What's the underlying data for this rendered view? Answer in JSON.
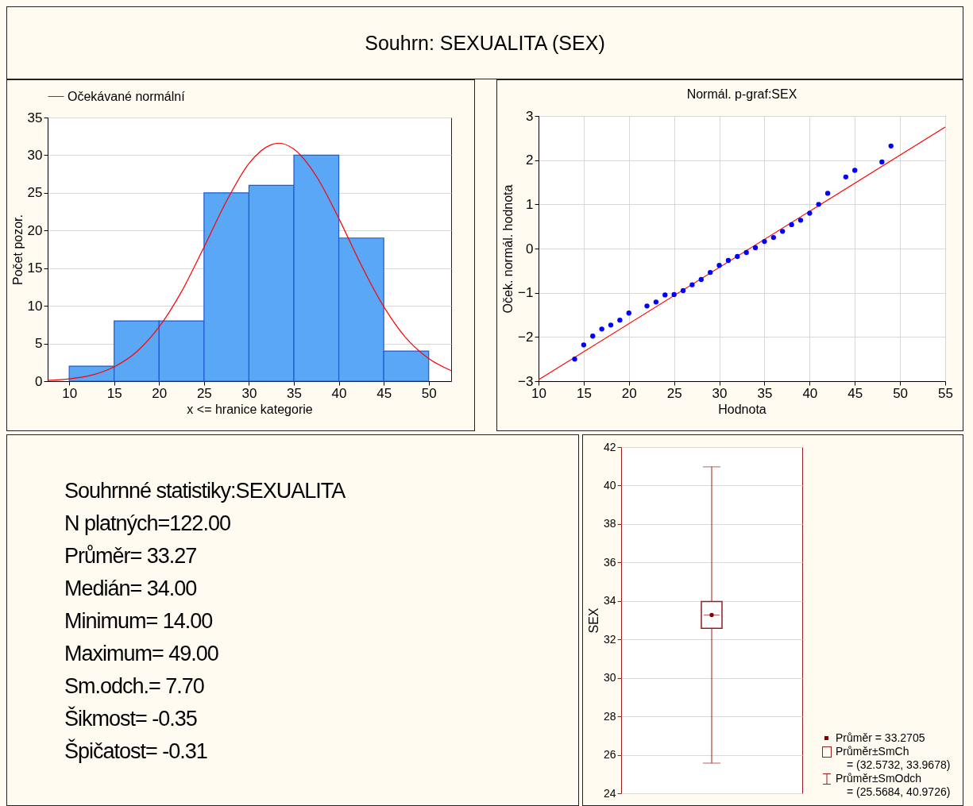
{
  "chart_data": [
    {
      "type": "histogram",
      "title": "Souhrn: SEXUALITA (SEX)",
      "xlabel": "x <= hranice kategorie",
      "ylabel": "Počet pozor.",
      "bins": [
        10,
        15,
        20,
        25,
        30,
        35,
        40,
        45,
        50
      ],
      "values": [
        2,
        8,
        8,
        25,
        26,
        30,
        19,
        4
      ],
      "color": "#5aa7f6",
      "xlim": [
        7.6,
        52.5
      ],
      "xticks": [
        10,
        15,
        20,
        25,
        30,
        35,
        40,
        45,
        50
      ],
      "ylim": [
        0,
        35
      ],
      "yticks": [
        0,
        5,
        10,
        15,
        20,
        25,
        30,
        35
      ],
      "grid": "y",
      "legend": "top",
      "series": [
        {
          "name": "Očekávané normální",
          "type": "line",
          "color": "#ff0000",
          "x": [
            7.6,
            10,
            12.5,
            15,
            17.5,
            20,
            22.5,
            25,
            27.5,
            30,
            32.5,
            33.3,
            35,
            37.5,
            40,
            42.5,
            45,
            47.5,
            50,
            52.5
          ],
          "values": [
            0.1,
            0.3,
            0.8,
            1.9,
            3.9,
            7.2,
            11.9,
            17.8,
            23.9,
            28.9,
            31.4,
            31.6,
            30.8,
            27.2,
            21.6,
            15.4,
            9.9,
            5.7,
            3.0,
            1.4
          ]
        }
      ]
    },
    {
      "type": "scatter",
      "title": "Normál. p-graf:SEX",
      "xlabel": "Hodnota",
      "ylabel": "Oček. normál. hodnota",
      "xlim": [
        10,
        55
      ],
      "xticks": [
        10,
        15,
        20,
        25,
        30,
        35,
        40,
        45,
        50,
        55
      ],
      "ylim": [
        -3,
        3
      ],
      "yticks": [
        -3,
        -2,
        -1,
        0,
        1,
        2,
        3
      ],
      "grid": true,
      "series": [
        {
          "type": "scatter",
          "marker": "circle",
          "color": "#0000ff",
          "x": [
            14,
            15,
            16,
            17,
            18,
            19,
            20,
            22,
            23,
            24,
            25,
            26,
            27,
            28,
            29,
            30,
            31,
            32,
            33,
            34,
            35,
            36,
            37,
            38,
            39,
            40,
            41,
            42,
            44,
            45,
            48,
            49
          ],
          "values": [
            -2.5,
            -2.18,
            -1.98,
            -1.82,
            -1.73,
            -1.62,
            -1.46,
            -1.3,
            -1.21,
            -1.05,
            -1.04,
            -0.95,
            -0.82,
            -0.7,
            -0.54,
            -0.38,
            -0.27,
            -0.18,
            -0.09,
            0.02,
            0.16,
            0.25,
            0.39,
            0.54,
            0.64,
            0.8,
            1.0,
            1.25,
            1.62,
            1.77,
            1.96,
            2.32
          ]
        },
        {
          "type": "line",
          "color": "#ff0000",
          "x": [
            10,
            55
          ],
          "values": [
            -2.97,
            2.75
          ]
        }
      ]
    },
    {
      "type": "other",
      "annotations": [
        "Souhrnné statistiky:SEXUALITA",
        "N platných=122.00",
        "Průměr= 33.27",
        "Medián= 34.00",
        "Minimum= 14.00",
        "Maximum= 49.00",
        "Sm.odch.=  7.70",
        "Šikmost= -0.35",
        "Špičatost= -0.31"
      ]
    },
    {
      "type": "box",
      "ylabel": "SEX",
      "categories": [
        null
      ],
      "ylim": [
        24,
        42
      ],
      "yticks": [
        24,
        26,
        28,
        30,
        32,
        34,
        36,
        38,
        40,
        42
      ],
      "grid": "y",
      "color": "#9b1c1c",
      "boxes": [
        {
          "low": 25.5684,
          "q1": 32.5732,
          "median": 33.2705,
          "q3": 33.9678,
          "high": 40.9726,
          "mean": 33.2705
        }
      ],
      "annotations": [
        "Průměr = 33.2705",
        "Průměr±SmCh",
        "= (32.5732, 33.9678)",
        "Průměr±SmOdch",
        "= (25.5684, 40.9726)"
      ]
    }
  ]
}
